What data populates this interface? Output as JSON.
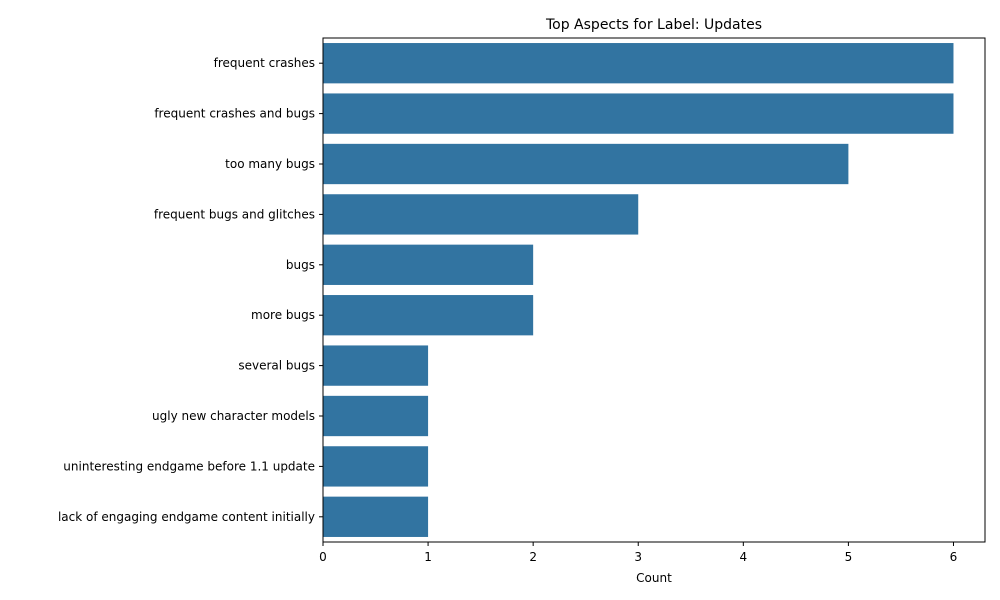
{
  "chart_data": {
    "type": "bar",
    "orientation": "horizontal",
    "title": "Top Aspects for Label: Updates",
    "xlabel": "Count",
    "ylabel": "",
    "categories": [
      "frequent crashes",
      "frequent crashes and bugs",
      "too many bugs",
      "frequent bugs and glitches",
      "bugs",
      "more bugs",
      "several bugs",
      "ugly new character models",
      "uninteresting endgame before 1.1 update",
      "lack of engaging endgame content initially"
    ],
    "values": [
      6,
      6,
      5,
      3,
      2,
      2,
      1,
      1,
      1,
      1
    ],
    "xlim": [
      0,
      6.3
    ],
    "xticks": [
      0,
      1,
      2,
      3,
      4,
      5,
      6
    ],
    "bar_color": "#3274a1",
    "grid": false
  }
}
